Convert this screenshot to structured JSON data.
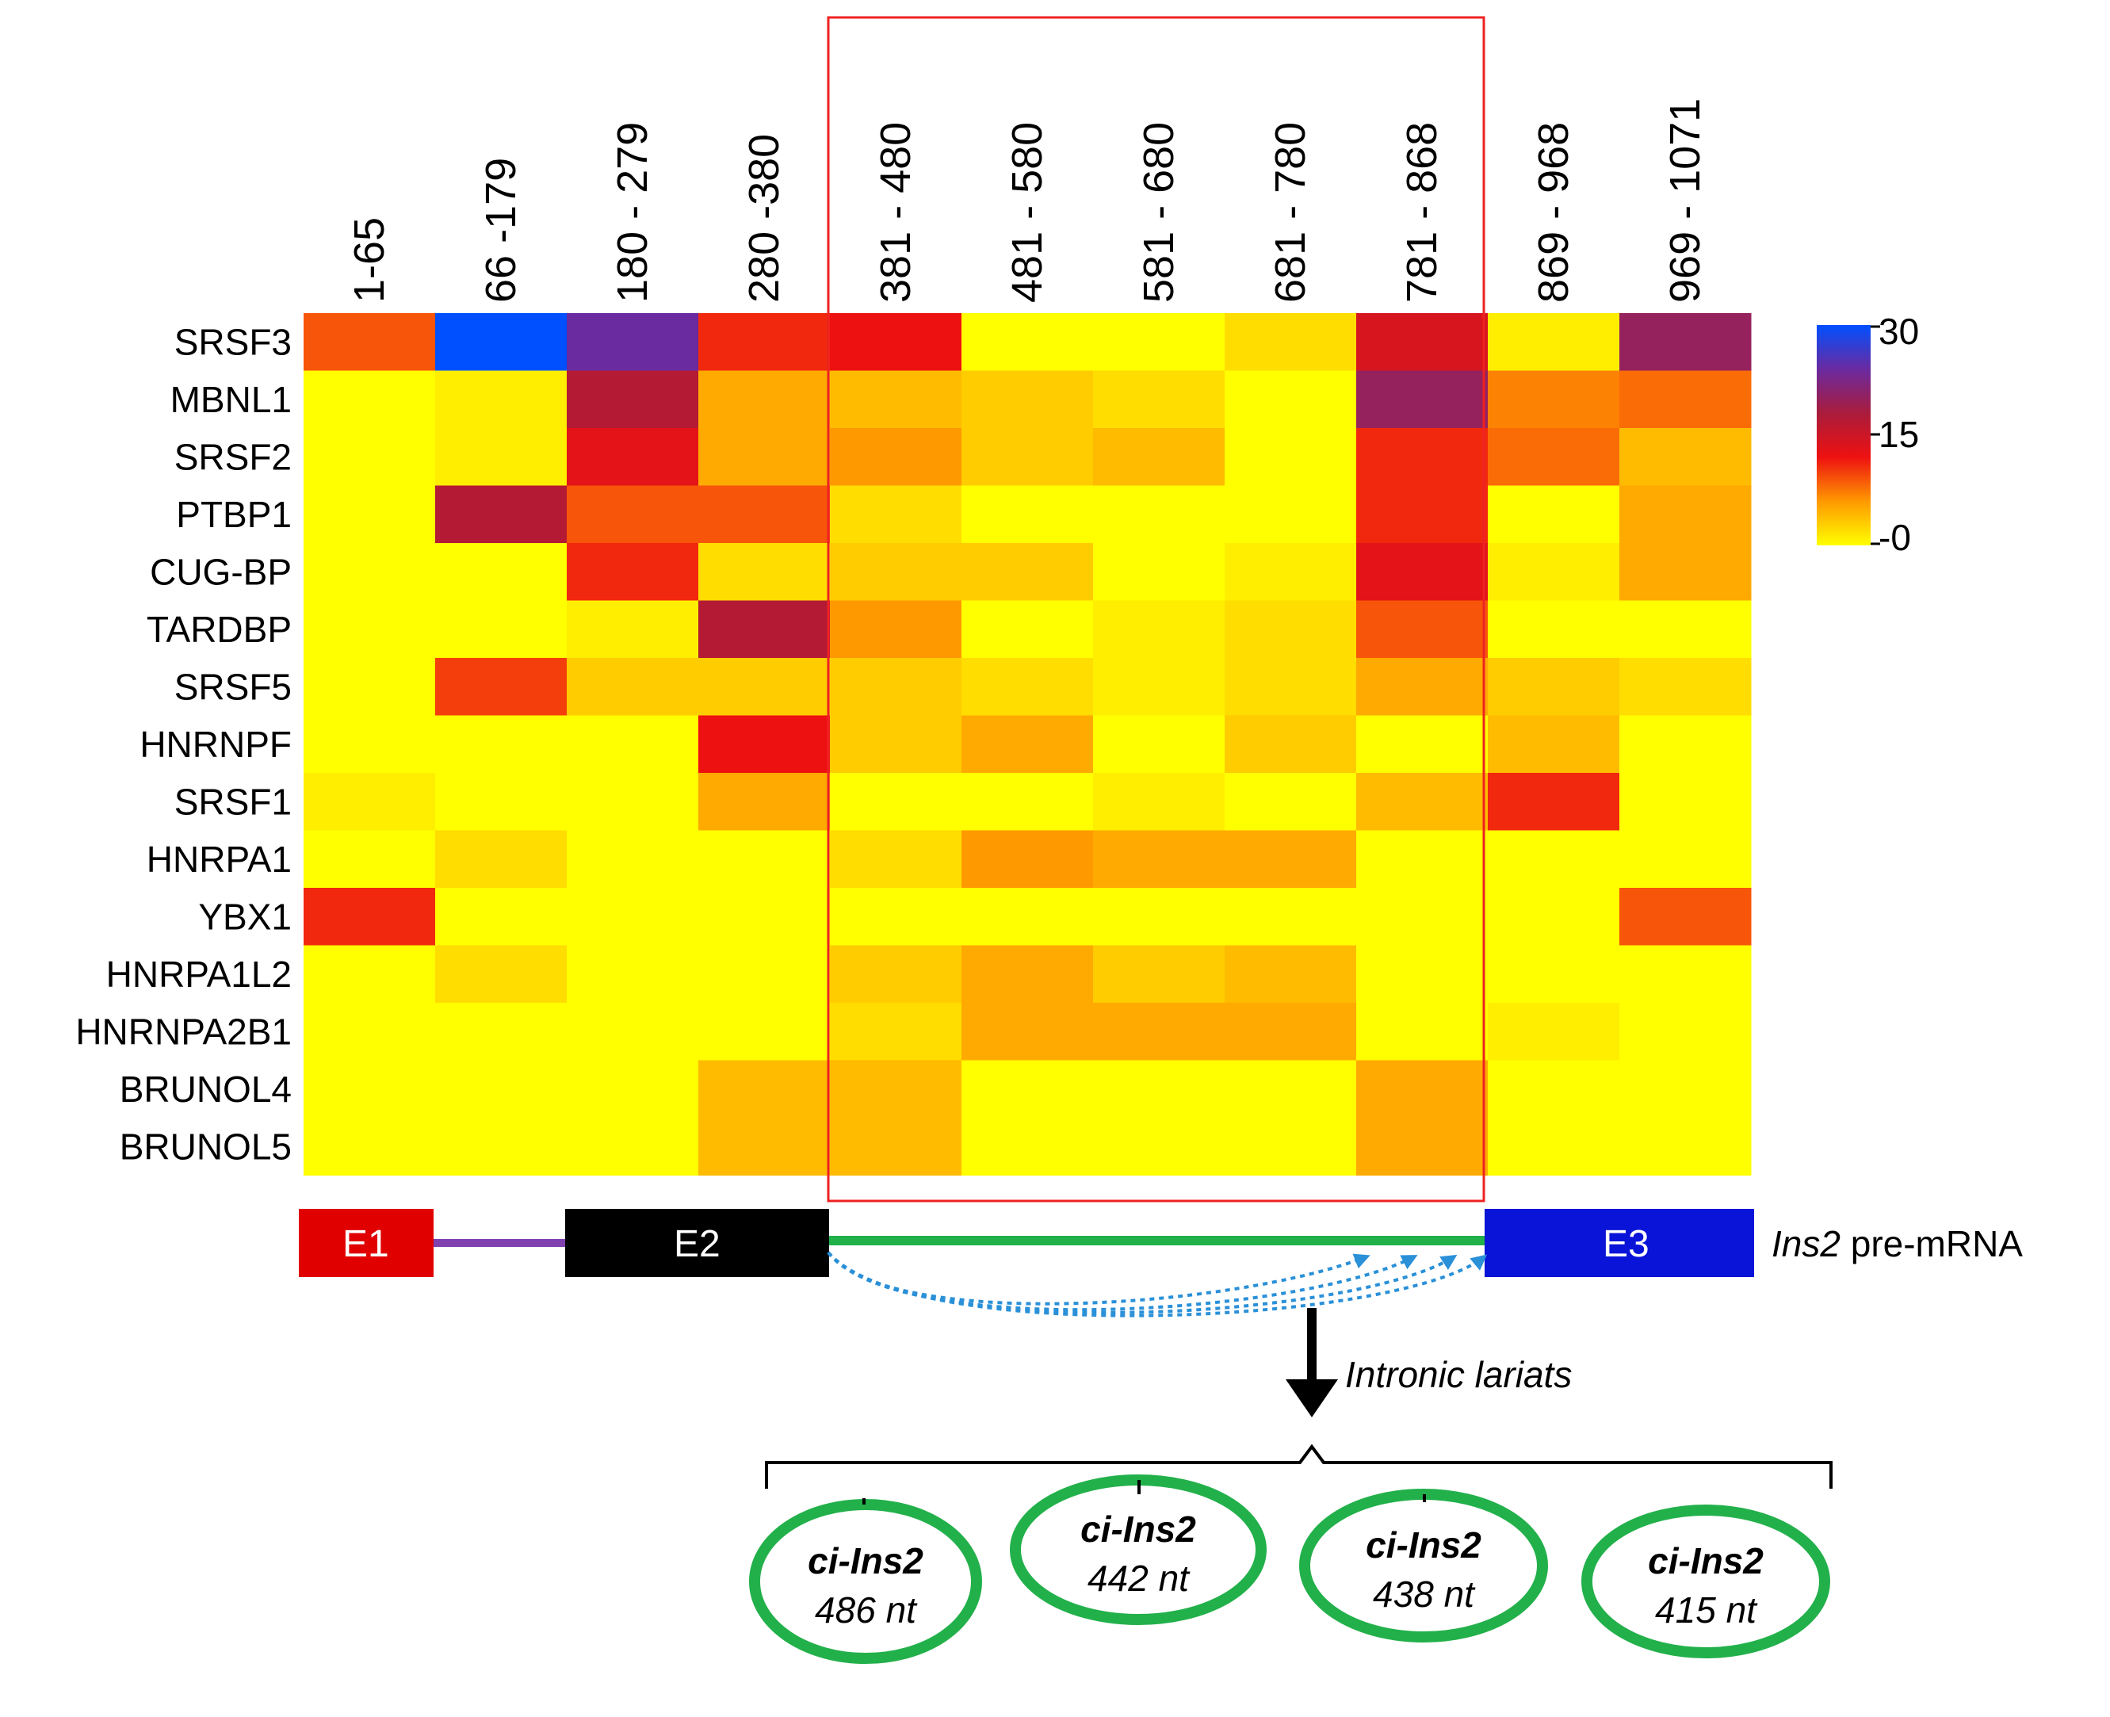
{
  "chart_data": {
    "type": "heatmap",
    "columns": [
      "1-65",
      "66 -179",
      "180 - 279",
      "280 -380",
      "381 - 480",
      "481 - 580",
      "581 - 680",
      "681 - 780",
      "781 - 868",
      "869 - 968",
      "969 - 1071"
    ],
    "rows": [
      "SRSF3",
      "MBNL1",
      "SRSF2",
      "PTBP1",
      "CUG-BP",
      "TARDBP",
      "SRSF5",
      "HNRNPF",
      "SRSF1",
      "HNRPA1",
      "YBX1",
      "HNRPA1L2",
      "HNRNPA2B1",
      "BRUNOL4",
      "BRUNOL5"
    ],
    "values": [
      [
        9,
        30,
        24,
        11,
        12,
        0,
        0,
        2,
        14,
        1,
        20
      ],
      [
        0,
        1,
        17,
        5,
        4,
        3,
        2,
        0,
        20,
        7,
        8
      ],
      [
        0,
        1,
        13,
        5,
        6,
        3,
        4,
        0,
        11,
        8,
        4
      ],
      [
        0,
        17,
        9,
        9,
        2,
        0,
        0,
        0,
        11,
        0,
        5
      ],
      [
        0,
        0,
        11,
        2,
        3,
        3,
        0,
        1,
        13,
        1,
        5
      ],
      [
        0,
        0,
        1,
        17,
        6,
        0,
        1,
        2,
        9,
        0,
        0
      ],
      [
        0,
        10,
        3,
        3,
        3,
        2,
        1,
        2,
        5,
        3,
        2
      ],
      [
        0,
        0,
        0,
        12,
        3,
        5,
        0,
        3,
        0,
        4,
        0
      ],
      [
        1,
        0,
        0,
        5,
        0,
        0,
        1,
        0,
        4,
        11,
        0
      ],
      [
        0,
        2,
        0,
        0,
        2,
        6,
        5,
        5,
        0,
        0,
        0
      ],
      [
        11,
        0,
        0,
        0,
        0,
        0,
        0,
        0,
        0,
        0,
        9
      ],
      [
        0,
        2,
        0,
        0,
        3,
        5,
        3,
        4,
        0,
        0,
        0
      ],
      [
        0,
        0,
        0,
        0,
        2,
        5,
        5,
        5,
        0,
        1,
        0
      ],
      [
        0,
        0,
        0,
        4,
        4,
        0,
        0,
        0,
        5,
        0,
        0
      ],
      [
        0,
        0,
        0,
        4,
        4,
        0,
        0,
        0,
        5,
        0,
        0
      ]
    ],
    "colorbar": {
      "min": 0,
      "max": 30,
      "tick_labels": [
        "30",
        "15",
        "-0"
      ],
      "colors": [
        "#ffff00",
        "#ff9900",
        "#ee1111",
        "#aa1c3c",
        "#6a2aa0",
        "#0050ff"
      ]
    },
    "highlight_columns": [
      "381 - 480",
      "481 - 580",
      "581 - 680",
      "681 - 780",
      "781 - 868"
    ],
    "highlight_color": "#ee2222"
  },
  "gene_diagram": {
    "exons": [
      {
        "label": "E1",
        "color": "#e00000"
      },
      {
        "label": "E2",
        "color": "#000000"
      },
      {
        "label": "E3",
        "color": "#0a14d8"
      }
    ],
    "intron1_color": "#8040b0",
    "intron2_color": "#22b04a",
    "lariat_arc_color": "#2a90d8",
    "gene_name": "Ins2",
    "gene_suffix": " pre-mRNA",
    "arrow_label": "Intronic lariats"
  },
  "circles": [
    {
      "name": "ci-Ins2",
      "size": "486 nt"
    },
    {
      "name": "ci-Ins2",
      "size": "442 nt"
    },
    {
      "name": "ci-Ins2",
      "size": "438 nt"
    },
    {
      "name": "ci-Ins2",
      "size": "415 nt"
    }
  ],
  "circle_color": "#22b04a"
}
